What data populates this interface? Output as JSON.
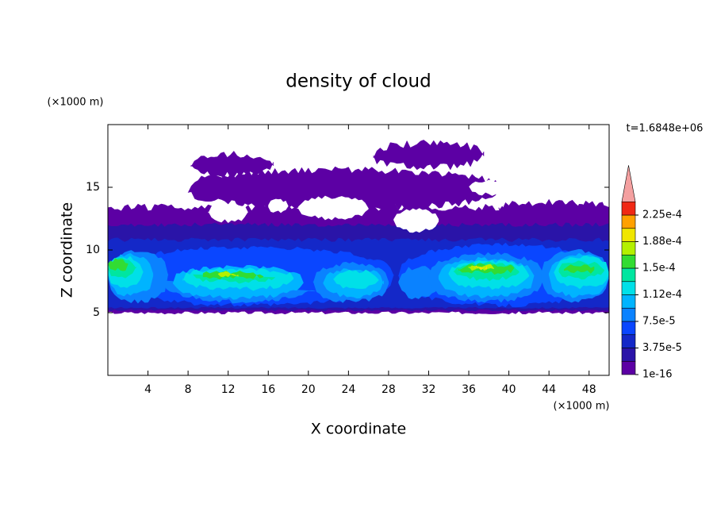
{
  "chart_data": {
    "type": "contour",
    "title": "density of cloud",
    "time_label": "t=1.6848e+06",
    "x_label": "X coordinate",
    "y_label": "Z coordinate",
    "x_unit": "(×1000 m)",
    "y_unit": "(×1000 m)",
    "xlim": [
      0,
      50
    ],
    "ylim": [
      0,
      20
    ],
    "xticks": [
      4,
      8,
      12,
      16,
      20,
      24,
      28,
      32,
      36,
      40,
      44,
      48
    ],
    "yticks": [
      5,
      10,
      15
    ],
    "levels": [
      1e-16,
      1.875e-05,
      3.75e-05,
      5.625e-05,
      7.5e-05,
      9.375e-05,
      0.0001125,
      0.00013125,
      0.00015,
      0.00016875,
      0.0001875,
      0.00020625,
      0.000225
    ],
    "colors": [
      "#5c00a4",
      "#2a14a8",
      "#1428c8",
      "#0a46ff",
      "#0a82ff",
      "#00b4ff",
      "#00e0e8",
      "#00e6a0",
      "#32dc32",
      "#b4f000",
      "#f0e600",
      "#ffa000",
      "#f02814"
    ],
    "overflow_color": "#f4a0a0",
    "colorbar_ticks": [
      {
        "value": 1e-16,
        "label": "1e-16"
      },
      {
        "value": 3.75e-05,
        "label": "3.75e-5"
      },
      {
        "value": 7.5e-05,
        "label": "7.5e-5"
      },
      {
        "value": 0.0001125,
        "label": "1.12e-4"
      },
      {
        "value": 0.00015,
        "label": "1.5e-4"
      },
      {
        "value": 0.0001875,
        "label": "1.88e-4"
      },
      {
        "value": 0.000225,
        "label": "2.25e-4"
      }
    ]
  }
}
